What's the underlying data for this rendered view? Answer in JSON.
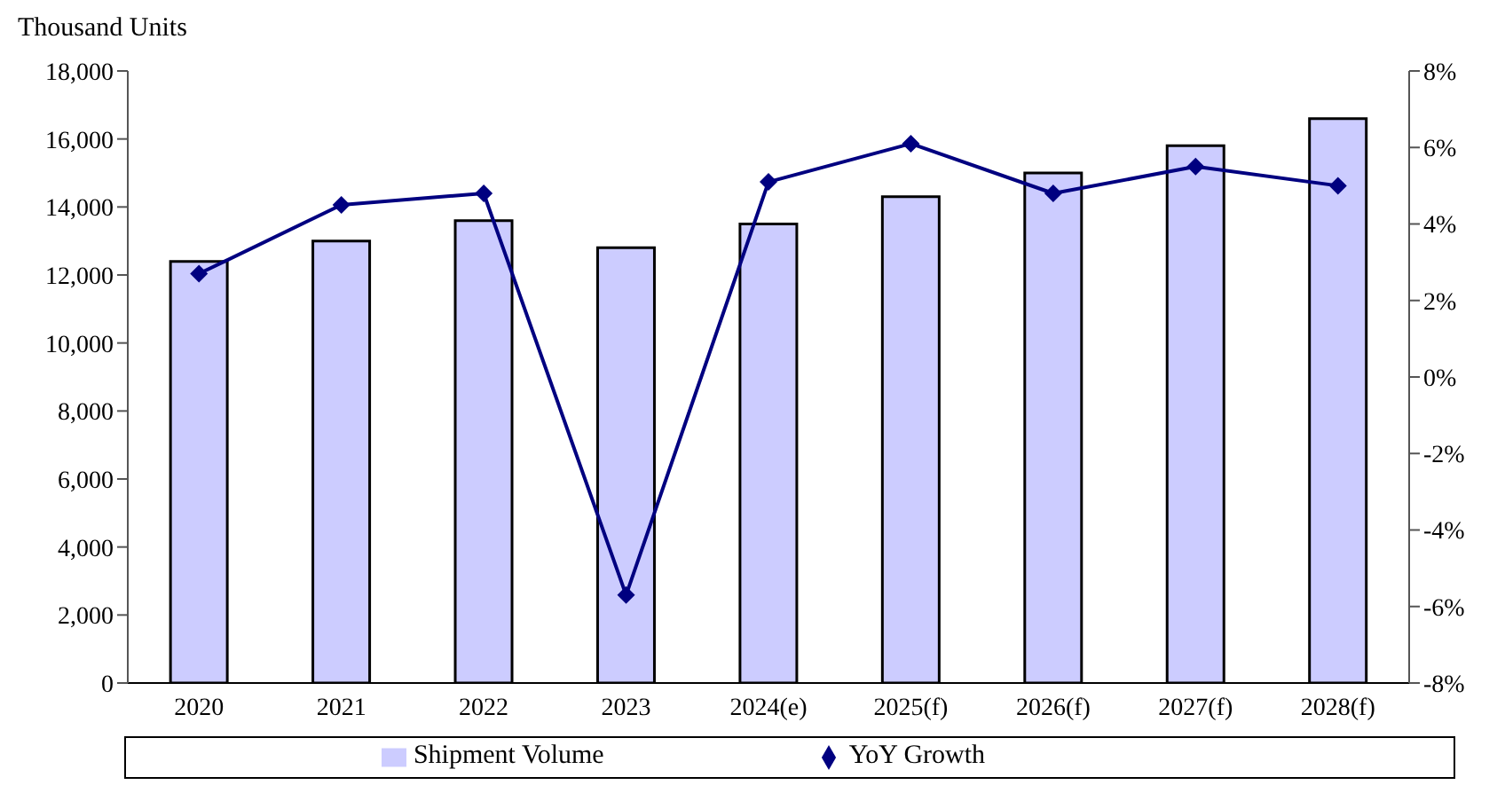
{
  "chart_data": {
    "type": "bar",
    "ylabel": "Thousand Units",
    "categories": [
      "2020",
      "2021",
      "2022",
      "2023",
      "2024(e)",
      "2025(f)",
      "2026(f)",
      "2027(f)",
      "2028(f)"
    ],
    "series": [
      {
        "name": "Shipment Volume",
        "color": "#ccccff",
        "values": [
          12400,
          13000,
          13600,
          12800,
          13500,
          14300,
          15000,
          15800,
          16600
        ]
      },
      {
        "name": "YoY Growth",
        "type": "line",
        "axis": "y2",
        "color": "#000080",
        "marker": "diamond",
        "values": [
          2.7,
          4.5,
          4.8,
          -5.7,
          5.1,
          6.1,
          4.8,
          5.5,
          5.0
        ]
      }
    ],
    "ylim": [
      0,
      18000
    ],
    "yticks": [
      {
        "value": 0,
        "label": "0"
      },
      {
        "value": 2000,
        "label": "2,000"
      },
      {
        "value": 4000,
        "label": "4,000"
      },
      {
        "value": 6000,
        "label": "6,000"
      },
      {
        "value": 8000,
        "label": "8,000"
      },
      {
        "value": 10000,
        "label": "10,000"
      },
      {
        "value": 12000,
        "label": "12,000"
      },
      {
        "value": 14000,
        "label": "14,000"
      },
      {
        "value": 16000,
        "label": "16,000"
      },
      {
        "value": 18000,
        "label": "18,000"
      }
    ],
    "y2lim": [
      -8,
      8
    ],
    "y2ticks": [
      {
        "value": -8,
        "label": "-8%"
      },
      {
        "value": -6,
        "label": "-6%"
      },
      {
        "value": -4,
        "label": "-4%"
      },
      {
        "value": -2,
        "label": "-2%"
      },
      {
        "value": 0,
        "label": "0%"
      },
      {
        "value": 2,
        "label": "2%"
      },
      {
        "value": 4,
        "label": "4%"
      },
      {
        "value": 6,
        "label": "6%"
      },
      {
        "value": 8,
        "label": "8%"
      }
    ],
    "grid": false,
    "legend": "bottom"
  }
}
